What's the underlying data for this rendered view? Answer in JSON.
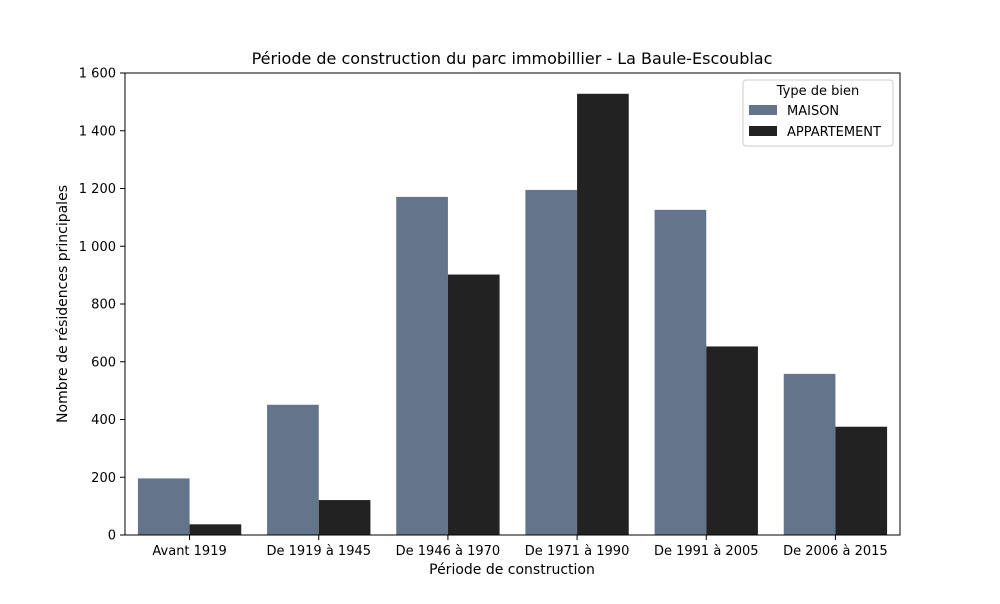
{
  "chart_data": {
    "type": "bar",
    "title": "Période de construction du parc immobillier - La Baule-Escoublac",
    "xlabel": "Période de construction",
    "ylabel": "Nombre de résidences principales",
    "categories": [
      "Avant 1919",
      "De 1919 à 1945",
      "De 1946 à 1970",
      "De 1971 à 1990",
      "De 1991 à 2005",
      "De 2006 à 2015"
    ],
    "series": [
      {
        "name": "MAISON",
        "color": "#64748b",
        "values": [
          196,
          451,
          1171,
          1195,
          1126,
          558
        ]
      },
      {
        "name": "APPARTEMENT",
        "color": "#222222",
        "values": [
          37,
          121,
          902,
          1528,
          653,
          375
        ]
      }
    ],
    "ylim": [
      0,
      1600
    ],
    "yticks": [
      0,
      200,
      400,
      600,
      800,
      1000,
      1200,
      1400,
      1600
    ],
    "ytick_labels": [
      "0",
      "200",
      "400",
      "600",
      "800",
      "1 000",
      "1 200",
      "1 400",
      "1 600"
    ],
    "legend": {
      "title": "Type de bien",
      "placement": "top-right"
    },
    "grid": false
  }
}
